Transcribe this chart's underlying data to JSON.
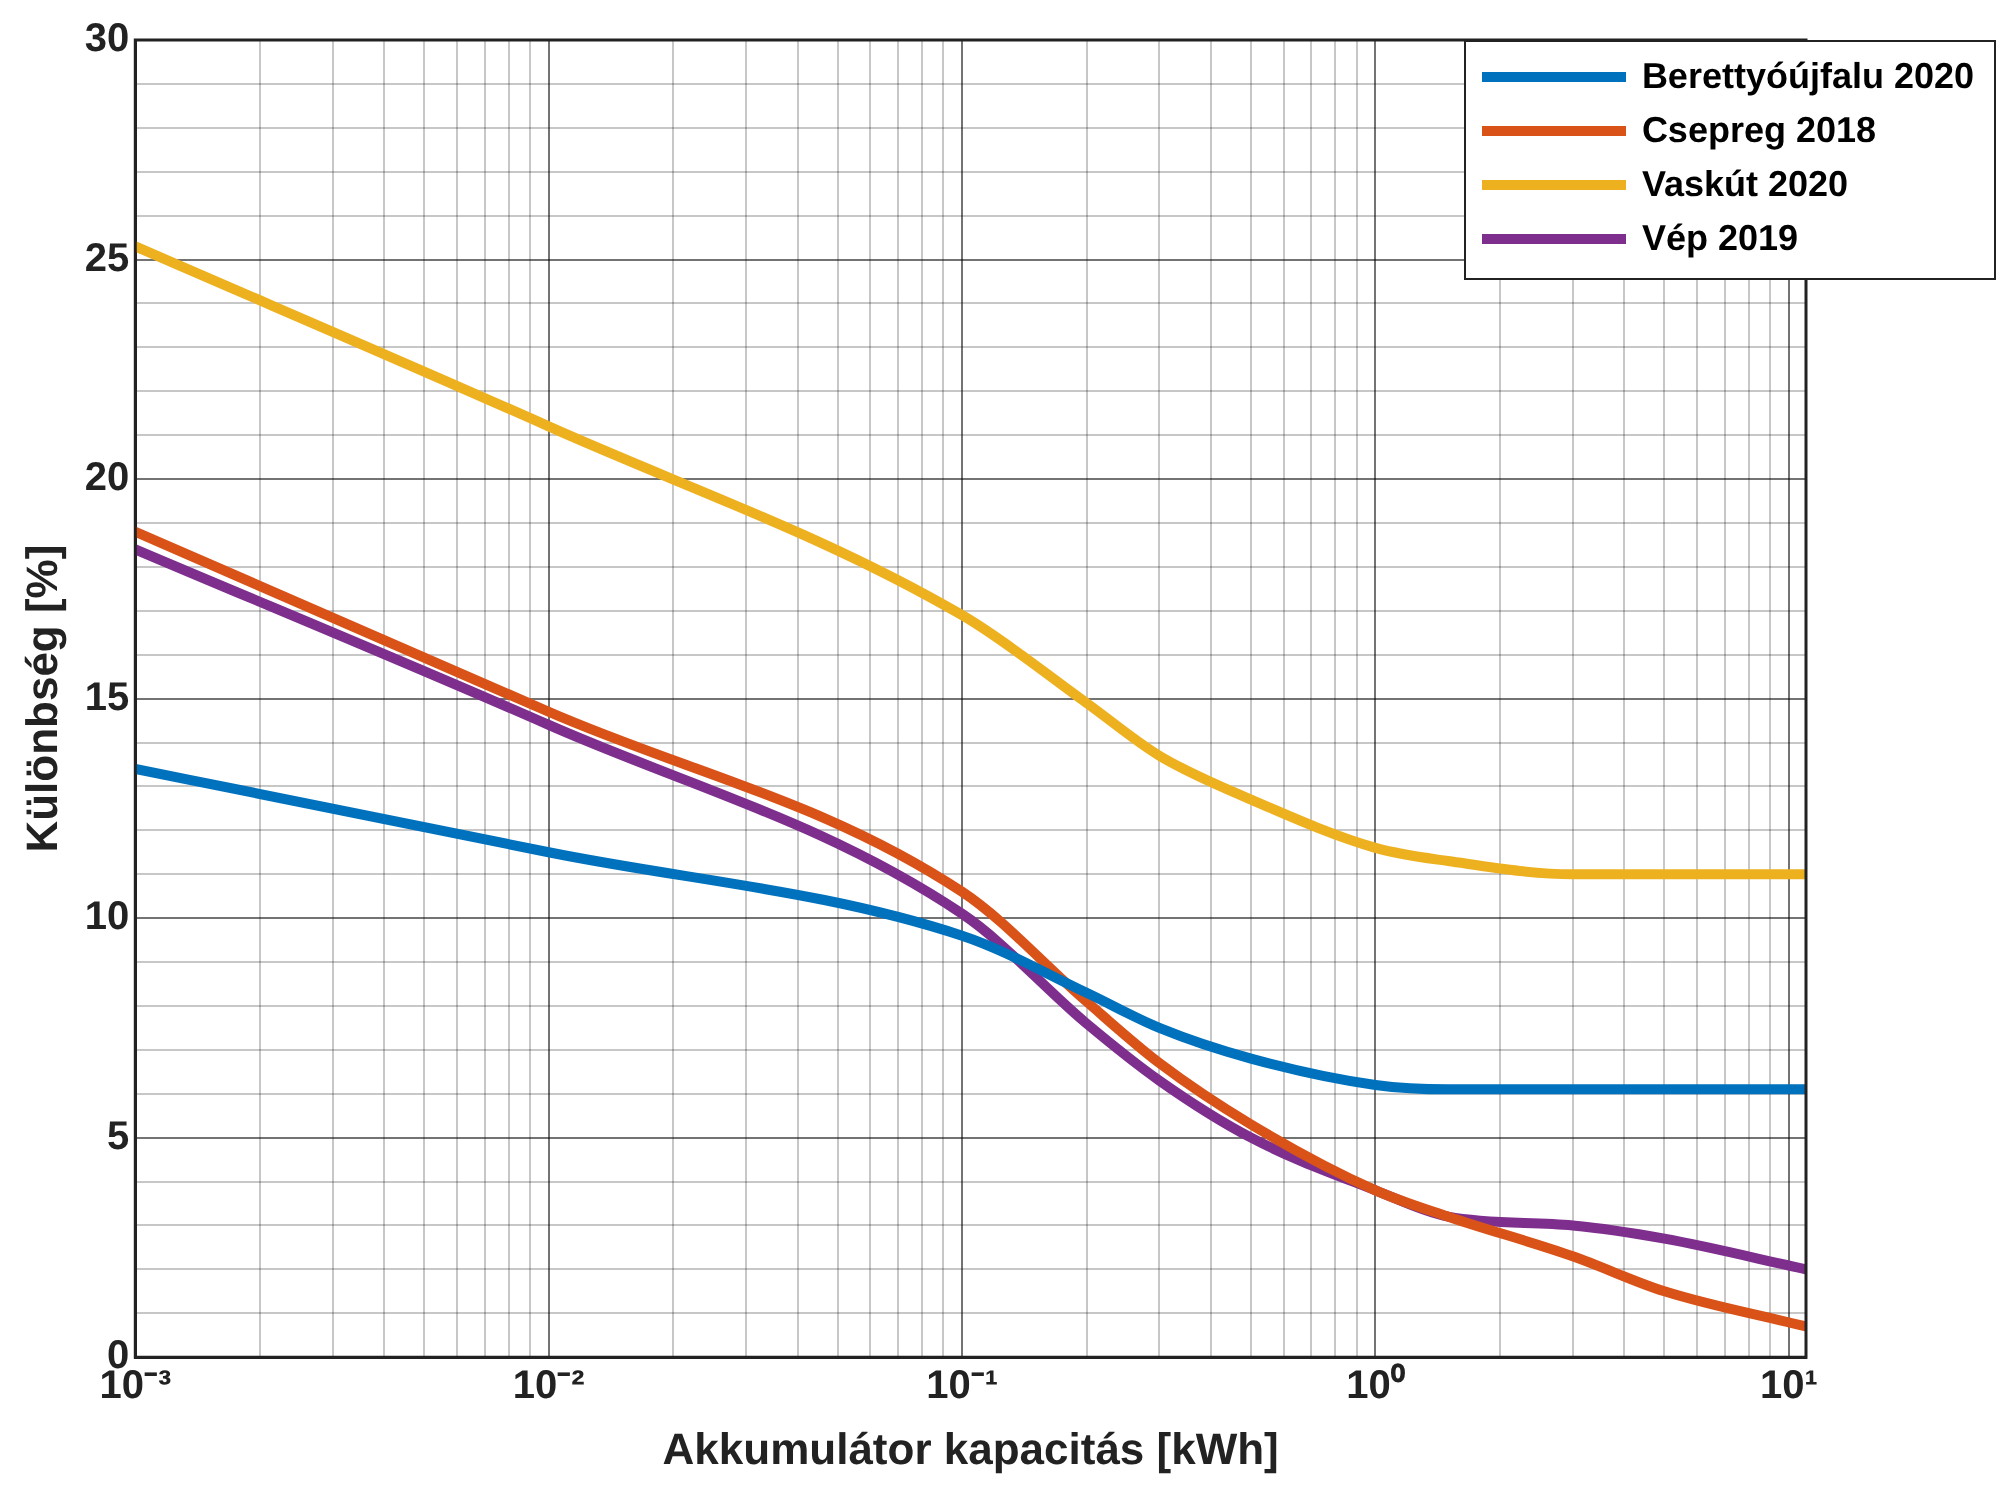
{
  "chart_data": {
    "type": "line",
    "xlabel": "Akkumulátor kapacitás [kWh]",
    "ylabel": "Különbség [%]",
    "log": "x",
    "grid": true,
    "legend": "top right",
    "marker": "none",
    "line_style": "solid",
    "x": [
      0.001,
      0.01,
      0.1,
      0.2,
      0.3,
      0.5,
      1,
      1.5,
      3,
      5,
      11
    ],
    "xlim": [
      0.001,
      11
    ],
    "xticks": [
      {
        "value": 0.001,
        "label": "10⁻³"
      },
      {
        "value": 0.002,
        "label": null
      },
      {
        "value": 0.003,
        "label": null
      },
      {
        "value": 0.004,
        "label": null
      },
      {
        "value": 0.005,
        "label": null
      },
      {
        "value": 0.006,
        "label": null
      },
      {
        "value": 0.007,
        "label": null
      },
      {
        "value": 0.008,
        "label": null
      },
      {
        "value": 0.009,
        "label": null
      },
      {
        "value": 0.01,
        "label": "10⁻²"
      },
      {
        "value": 0.02,
        "label": null
      },
      {
        "value": 0.03,
        "label": null
      },
      {
        "value": 0.04,
        "label": null
      },
      {
        "value": 0.05,
        "label": null
      },
      {
        "value": 0.06,
        "label": null
      },
      {
        "value": 0.07,
        "label": null
      },
      {
        "value": 0.08,
        "label": null
      },
      {
        "value": 0.09,
        "label": null
      },
      {
        "value": 0.1,
        "label": "10⁻¹"
      },
      {
        "value": 0.2,
        "label": null
      },
      {
        "value": 0.3,
        "label": null
      },
      {
        "value": 0.4,
        "label": null
      },
      {
        "value": 0.5,
        "label": null
      },
      {
        "value": 0.6,
        "label": null
      },
      {
        "value": 0.7,
        "label": null
      },
      {
        "value": 0.8,
        "label": null
      },
      {
        "value": 0.9,
        "label": null
      },
      {
        "value": 1,
        "label": "10⁰"
      },
      {
        "value": 2,
        "label": null
      },
      {
        "value": 3,
        "label": null
      },
      {
        "value": 4,
        "label": null
      },
      {
        "value": 5,
        "label": null
      },
      {
        "value": 6,
        "label": null
      },
      {
        "value": 7,
        "label": null
      },
      {
        "value": 8,
        "label": null
      },
      {
        "value": 9,
        "label": null
      },
      {
        "value": 10,
        "label": "10¹"
      }
    ],
    "ylim": [
      0,
      30
    ],
    "yticks": [
      0,
      {
        "value": 1,
        "label": null
      },
      {
        "value": 2,
        "label": null
      },
      {
        "value": 3,
        "label": null
      },
      {
        "value": 4,
        "label": null
      },
      5,
      {
        "value": 6,
        "label": null
      },
      {
        "value": 7,
        "label": null
      },
      {
        "value": 8,
        "label": null
      },
      {
        "value": 9,
        "label": null
      },
      10,
      {
        "value": 11,
        "label": null
      },
      {
        "value": 12,
        "label": null
      },
      {
        "value": 13,
        "label": null
      },
      {
        "value": 14,
        "label": null
      },
      15,
      {
        "value": 16,
        "label": null
      },
      {
        "value": 17,
        "label": null
      },
      {
        "value": 18,
        "label": null
      },
      {
        "value": 19,
        "label": null
      },
      20,
      {
        "value": 21,
        "label": null
      },
      {
        "value": 22,
        "label": null
      },
      {
        "value": 23,
        "label": null
      },
      {
        "value": 24,
        "label": null
      },
      25,
      {
        "value": 26,
        "label": null
      },
      {
        "value": 27,
        "label": null
      },
      {
        "value": 28,
        "label": null
      },
      {
        "value": 29,
        "label": null
      },
      30
    ],
    "series": [
      {
        "name": "Berettyóújfalu 2020",
        "color": "#0072bd",
        "values": [
          13.4,
          11.5,
          9.6,
          8.3,
          7.5,
          6.8,
          6.2,
          6.1,
          6.1,
          6.1,
          6.1
        ]
      },
      {
        "name": "Csepreg 2018",
        "color": "#d95319",
        "values": [
          18.8,
          14.7,
          10.6,
          8.1,
          6.7,
          5.3,
          3.8,
          3.2,
          2.3,
          1.5,
          0.7
        ]
      },
      {
        "name": "Vaskút 2020",
        "color": "#edb120",
        "values": [
          25.3,
          21.2,
          16.9,
          14.9,
          13.7,
          12.7,
          11.6,
          11.3,
          11.0,
          11.0,
          11.0
        ]
      },
      {
        "name": "Vép 2019",
        "color": "#7e2f8e",
        "values": [
          18.4,
          14.4,
          10.1,
          7.6,
          6.3,
          5.0,
          3.8,
          3.2,
          3.0,
          2.7,
          2.0
        ]
      }
    ]
  }
}
